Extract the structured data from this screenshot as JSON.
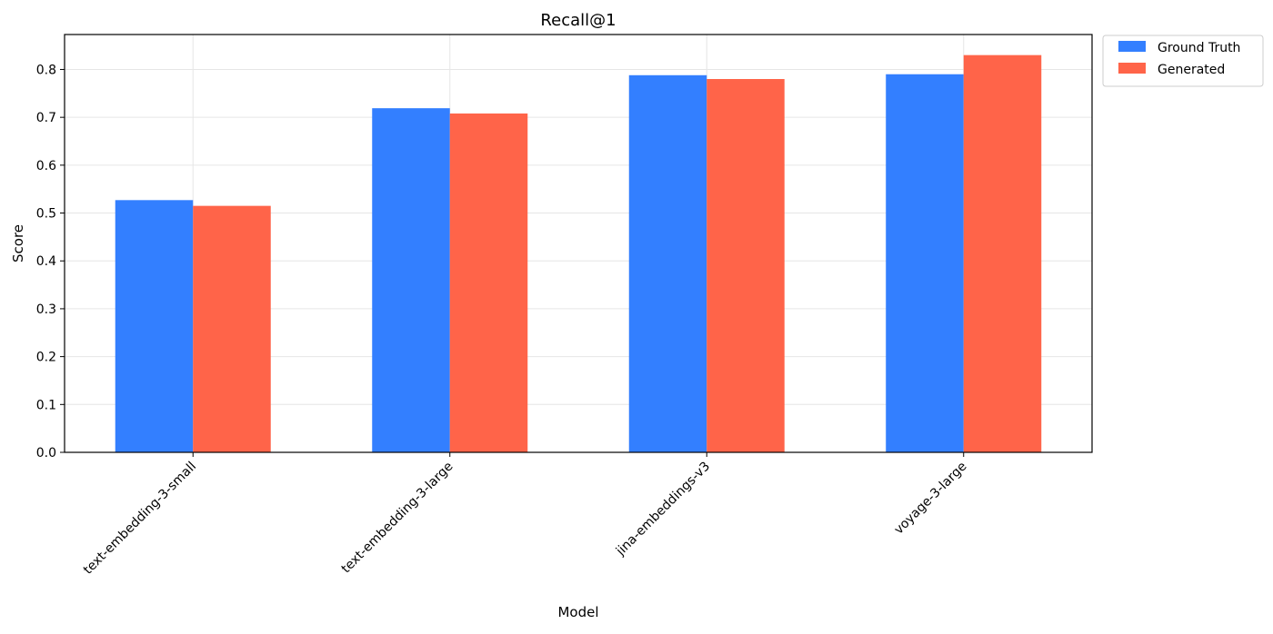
{
  "chart_data": {
    "type": "bar",
    "title": "Recall@1",
    "xlabel": "Model",
    "ylabel": "Score",
    "categories": [
      "text-embedding-3-small",
      "text-embedding-3-large",
      "jina-embeddings-v3",
      "voyage-3-large"
    ],
    "series": [
      {
        "name": "Ground Truth",
        "color": "#337fff",
        "values": [
          0.527,
          0.719,
          0.788,
          0.79
        ]
      },
      {
        "name": "Generated",
        "color": "#ff6449",
        "values": [
          0.515,
          0.708,
          0.78,
          0.83
        ]
      }
    ],
    "ylim": [
      0,
      0.873
    ],
    "yticks": [
      0.0,
      0.1,
      0.2,
      0.3,
      0.4,
      0.5,
      0.6,
      0.7,
      0.8
    ],
    "grid": true,
    "legend_position": "outside-top-right"
  }
}
